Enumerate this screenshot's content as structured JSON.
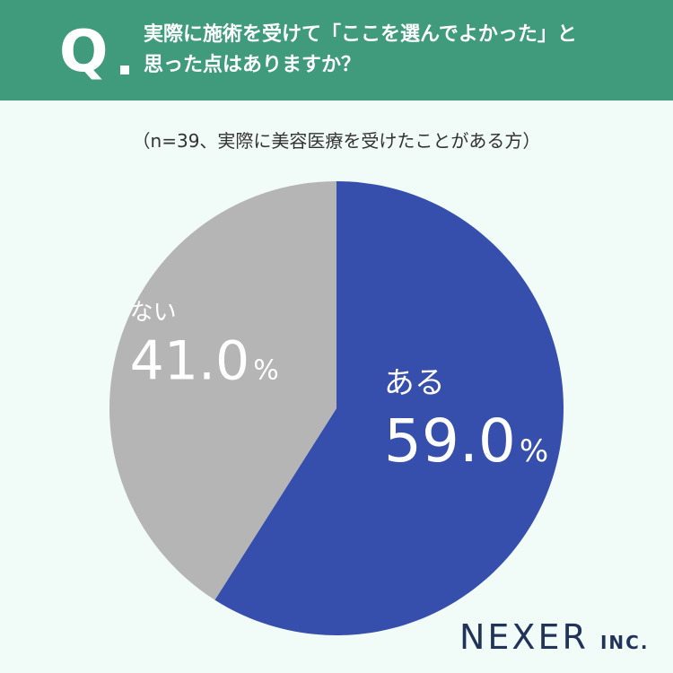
{
  "header": {
    "q_letter": "Q",
    "question_line1": "実際に施術を受けて「ここを選んでよかった」と",
    "question_line2": "思った点はありますか？"
  },
  "sample_note": "（n=39、実際に美容医療を受けたことがある方）",
  "colors": {
    "header_bg": "#409a7c",
    "background": "#f1fbf8",
    "slice_yes": "#364eac",
    "slice_no": "#b5b5b5",
    "logo": "#22335a"
  },
  "chart_data": {
    "type": "pie",
    "categories": [
      "ある",
      "ない"
    ],
    "values": [
      59.0,
      41.0
    ],
    "value_labels": [
      "59.0",
      "41.0"
    ],
    "unit": "%",
    "start_angle_deg": 0,
    "direction": "clockwise",
    "colors": [
      "#364eac",
      "#b5b5b5"
    ],
    "title": ""
  },
  "logo": {
    "main": "NEXER",
    "sub": "INC."
  }
}
